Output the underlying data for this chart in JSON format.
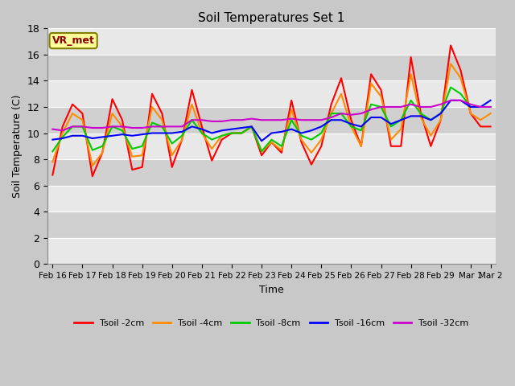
{
  "title": "Soil Temperatures Set 1",
  "xlabel": "Time",
  "ylabel": "Soil Temperature (C)",
  "ylim": [
    0,
    18
  ],
  "yticks": [
    0,
    2,
    4,
    6,
    8,
    10,
    12,
    14,
    16,
    18
  ],
  "fig_bg_color": "#c8c8c8",
  "plot_bg_color": "#d8d8d8",
  "band_color_light": "#e8e8e8",
  "band_color_dark": "#d0d0d0",
  "annotation_text": "VR_met",
  "annotation_bg": "#ffff99",
  "annotation_border": "#808000",
  "annotation_text_color": "#8B0000",
  "series": {
    "Tsoil -2cm": {
      "color": "#ff0000",
      "values": [
        6.8,
        10.5,
        12.2,
        11.5,
        6.7,
        8.5,
        12.6,
        11.0,
        7.2,
        7.4,
        13.0,
        11.5,
        7.4,
        9.5,
        13.3,
        10.5,
        7.9,
        9.5,
        10.0,
        10.0,
        10.5,
        8.3,
        9.3,
        8.5,
        12.5,
        9.3,
        7.6,
        9.0,
        12.2,
        14.2,
        11.0,
        9.0,
        14.5,
        13.3,
        9.0,
        9.0,
        15.8,
        11.5,
        9.0,
        11.0,
        16.7,
        14.8,
        11.5,
        10.5,
        10.5
      ]
    },
    "Tsoil -4cm": {
      "color": "#ff8c00",
      "values": [
        7.8,
        10.0,
        11.5,
        11.0,
        7.5,
        8.5,
        11.5,
        10.5,
        8.2,
        8.3,
        12.0,
        11.0,
        8.3,
        9.5,
        12.2,
        10.0,
        8.8,
        9.8,
        10.0,
        10.0,
        10.5,
        8.6,
        9.3,
        8.7,
        11.8,
        9.5,
        8.5,
        9.5,
        11.5,
        13.0,
        10.5,
        9.0,
        13.8,
        12.8,
        9.5,
        10.3,
        14.5,
        11.2,
        9.8,
        11.0,
        15.3,
        14.2,
        11.5,
        11.0,
        11.5
      ]
    },
    "Tsoil -8cm": {
      "color": "#00cc00",
      "values": [
        8.6,
        9.7,
        10.5,
        10.5,
        8.7,
        9.0,
        10.5,
        10.2,
        8.8,
        9.0,
        10.8,
        10.5,
        9.2,
        9.8,
        11.0,
        10.0,
        9.5,
        9.8,
        10.0,
        10.0,
        10.5,
        8.6,
        9.5,
        9.0,
        11.0,
        9.8,
        9.5,
        10.0,
        11.5,
        11.5,
        10.5,
        10.2,
        12.2,
        12.0,
        10.5,
        11.0,
        12.5,
        11.5,
        11.0,
        11.5,
        13.5,
        13.0,
        12.0,
        12.0,
        12.0
      ]
    },
    "Tsoil -16cm": {
      "color": "#0000ff",
      "values": [
        9.5,
        9.6,
        9.8,
        9.8,
        9.6,
        9.7,
        9.8,
        9.9,
        9.8,
        9.9,
        10.0,
        10.0,
        10.0,
        10.1,
        10.5,
        10.3,
        10.0,
        10.2,
        10.3,
        10.4,
        10.5,
        9.4,
        10.0,
        10.1,
        10.3,
        10.0,
        10.2,
        10.5,
        11.0,
        11.0,
        10.7,
        10.5,
        11.2,
        11.2,
        10.7,
        11.0,
        11.3,
        11.3,
        11.0,
        11.5,
        12.5,
        12.5,
        12.0,
        12.0,
        12.5
      ]
    },
    "Tsoil -32cm": {
      "color": "#cc00cc",
      "values": [
        10.3,
        10.2,
        10.5,
        10.5,
        10.4,
        10.4,
        10.5,
        10.5,
        10.4,
        10.4,
        10.5,
        10.5,
        10.5,
        10.5,
        11.0,
        11.0,
        10.9,
        10.9,
        11.0,
        11.0,
        11.1,
        11.0,
        11.0,
        11.0,
        11.1,
        11.0,
        11.0,
        11.0,
        11.2,
        11.5,
        11.4,
        11.5,
        11.8,
        12.0,
        12.0,
        12.0,
        12.2,
        12.0,
        12.0,
        12.2,
        12.5,
        12.5,
        12.2,
        12.0,
        12.0
      ]
    }
  },
  "x_tick_labels": [
    "Feb 16",
    "Feb 17",
    "Feb 18",
    "Feb 19",
    "Feb 20",
    "Feb 21",
    "Feb 22",
    "Feb 23",
    "Feb 24",
    "Feb 25",
    "Feb 26",
    "Feb 27",
    "Feb 28",
    "Feb 29",
    "Mar 1",
    "Mar 2"
  ],
  "num_points": 45,
  "x_tick_positions": [
    0,
    3,
    6,
    9,
    12,
    15,
    18,
    21,
    24,
    27,
    30,
    33,
    36,
    39,
    42,
    44
  ]
}
